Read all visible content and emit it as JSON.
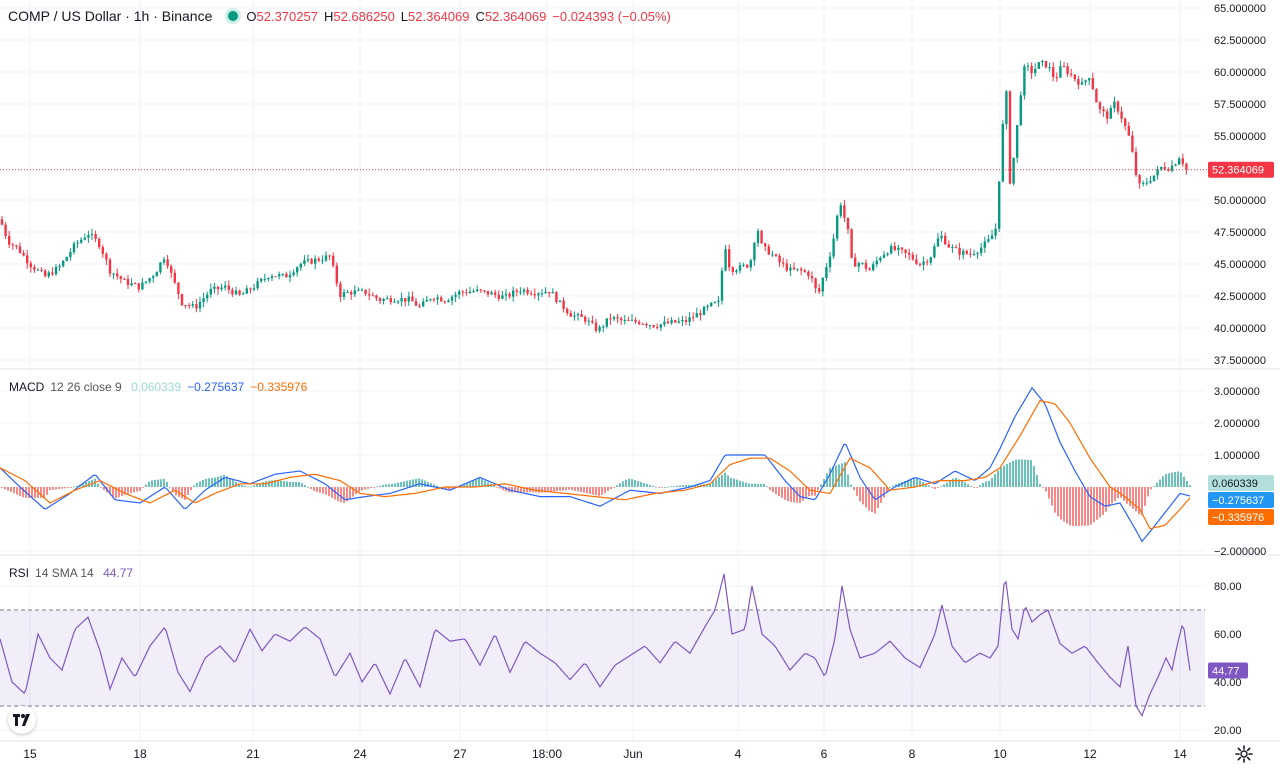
{
  "header": {
    "symbol_line": "COMP / US Dollar · 1h · Binance",
    "open_label": "O",
    "open": "52.370257",
    "high_label": "H",
    "high": "52.686250",
    "low_label": "L",
    "low": "52.364069",
    "close_label": "C",
    "close": "52.364069",
    "change": "−0.024393 (−0.05%)"
  },
  "macd_legend": {
    "name": "MACD",
    "params": "12 26 close 9",
    "hist": "0.060339",
    "macd": "−0.275637",
    "signal": "−0.335976"
  },
  "rsi_legend": {
    "name": "RSI",
    "params": "14 SMA 14",
    "value": "44.77"
  },
  "colors": {
    "up": "#089981",
    "down": "#f23645",
    "macd": "#2962ff",
    "signal": "#ff6d00",
    "rsi": "#7e57c2",
    "hist_up": "#26a69a",
    "hist_down": "#ef5350"
  },
  "chart_data": [
    {
      "type": "candlestick",
      "title": "COMP / US Dollar · 1h · Binance",
      "ylim": [
        36.5,
        65.0
      ],
      "y_ticks": [
        "65.000000",
        "62.500000",
        "60.000000",
        "57.500000",
        "55.000000",
        "50.000000",
        "47.500000",
        "45.000000",
        "42.500000",
        "40.000000",
        "37.500000"
      ],
      "last_price": "52.364069",
      "x_tick_labels": [
        "15",
        "18",
        "21",
        "24",
        "27",
        "18:00",
        "Jun",
        "4",
        "6",
        "8",
        "10",
        "12",
        "14"
      ],
      "close_path": [
        [
          0,
          48.5
        ],
        [
          8,
          46.8
        ],
        [
          18,
          46.2
        ],
        [
          30,
          45.0
        ],
        [
          45,
          44.0
        ],
        [
          60,
          44.8
        ],
        [
          75,
          46.5
        ],
        [
          88,
          47.4
        ],
        [
          100,
          46.5
        ],
        [
          110,
          44.5
        ],
        [
          125,
          43.6
        ],
        [
          140,
          43.2
        ],
        [
          155,
          44.3
        ],
        [
          165,
          45.7
        ],
        [
          172,
          44.0
        ],
        [
          182,
          42.0
        ],
        [
          195,
          41.6
        ],
        [
          210,
          42.9
        ],
        [
          225,
          43.2
        ],
        [
          240,
          42.5
        ],
        [
          255,
          43.3
        ],
        [
          270,
          44.2
        ],
        [
          285,
          44.0
        ],
        [
          300,
          45.0
        ],
        [
          315,
          45.3
        ],
        [
          330,
          45.6
        ],
        [
          340,
          42.6
        ],
        [
          350,
          42.8
        ],
        [
          365,
          42.8
        ],
        [
          380,
          42.2
        ],
        [
          395,
          42.3
        ],
        [
          410,
          42.2
        ],
        [
          420,
          41.6
        ],
        [
          432,
          42.5
        ],
        [
          445,
          42.2
        ],
        [
          460,
          42.8
        ],
        [
          475,
          42.9
        ],
        [
          490,
          42.7
        ],
        [
          505,
          42.4
        ],
        [
          520,
          43.0
        ],
        [
          535,
          42.8
        ],
        [
          550,
          42.9
        ],
        [
          560,
          41.9
        ],
        [
          572,
          41.0
        ],
        [
          585,
          40.7
        ],
        [
          598,
          39.8
        ],
        [
          610,
          40.8
        ],
        [
          625,
          40.5
        ],
        [
          640,
          40.5
        ],
        [
          655,
          40.2
        ],
        [
          670,
          40.4
        ],
        [
          685,
          40.5
        ],
        [
          700,
          41.2
        ],
        [
          712,
          41.8
        ],
        [
          720,
          42.0
        ],
        [
          724,
          47.0
        ],
        [
          730,
          44.6
        ],
        [
          740,
          44.7
        ],
        [
          750,
          45.0
        ],
        [
          757,
          48.0
        ],
        [
          762,
          46.3
        ],
        [
          770,
          45.9
        ],
        [
          780,
          45.1
        ],
        [
          790,
          44.5
        ],
        [
          800,
          44.5
        ],
        [
          810,
          44.2
        ],
        [
          818,
          42.5
        ],
        [
          825,
          44.5
        ],
        [
          832,
          46.3
        ],
        [
          840,
          50.0
        ],
        [
          848,
          47.5
        ],
        [
          852,
          45.0
        ],
        [
          860,
          45.1
        ],
        [
          870,
          44.5
        ],
        [
          880,
          45.6
        ],
        [
          890,
          46.2
        ],
        [
          900,
          46.0
        ],
        [
          910,
          45.6
        ],
        [
          920,
          45.0
        ],
        [
          930,
          45.5
        ],
        [
          940,
          47.3
        ],
        [
          950,
          46.3
        ],
        [
          960,
          45.9
        ],
        [
          970,
          45.8
        ],
        [
          980,
          46.2
        ],
        [
          990,
          46.9
        ],
        [
          997,
          48.0
        ],
        [
          1000,
          53.0
        ],
        [
          1006,
          59.0
        ],
        [
          1010,
          51.5
        ],
        [
          1015,
          54.0
        ],
        [
          1020,
          58.0
        ],
        [
          1025,
          60.5
        ],
        [
          1032,
          60.0
        ],
        [
          1040,
          60.7
        ],
        [
          1048,
          60.5
        ],
        [
          1055,
          59.4
        ],
        [
          1062,
          60.5
        ],
        [
          1068,
          60.0
        ],
        [
          1075,
          59.5
        ],
        [
          1082,
          59.0
        ],
        [
          1090,
          59.8
        ],
        [
          1095,
          58.0
        ],
        [
          1100,
          57.0
        ],
        [
          1108,
          56.5
        ],
        [
          1115,
          57.6
        ],
        [
          1122,
          56.4
        ],
        [
          1130,
          54.7
        ],
        [
          1136,
          52.0
        ],
        [
          1140,
          51.0
        ],
        [
          1148,
          51.5
        ],
        [
          1155,
          52.0
        ],
        [
          1162,
          52.6
        ],
        [
          1170,
          52.5
        ],
        [
          1176,
          53.0
        ],
        [
          1180,
          53.5
        ],
        [
          1186,
          52.4
        ],
        [
          1190,
          52.36
        ]
      ]
    },
    {
      "type": "line",
      "title": "MACD 12 26 close 9",
      "ylim": [
        -2.4,
        3.5
      ],
      "y_ticks": [
        "3.000000",
        "2.000000",
        "1.000000",
        "−2.000000"
      ],
      "series": [
        {
          "name": "MACD",
          "x": [
            0,
            20,
            45,
            70,
            95,
            115,
            140,
            165,
            185,
            205,
            225,
            250,
            275,
            300,
            325,
            345,
            365,
            390,
            420,
            450,
            480,
            510,
            540,
            570,
            600,
            630,
            660,
            690,
            710,
            725,
            745,
            765,
            785,
            800,
            815,
            830,
            845,
            860,
            875,
            895,
            915,
            935,
            955,
            975,
            990,
            1000,
            1015,
            1032,
            1045,
            1060,
            1075,
            1090,
            1105,
            1120,
            1135,
            1142,
            1150,
            1165,
            1180,
            1190
          ],
          "values": [
            0.6,
            0.0,
            -0.7,
            -0.2,
            0.4,
            -0.4,
            -0.5,
            0.0,
            -0.7,
            -0.1,
            0.3,
            0.1,
            0.4,
            0.5,
            0.1,
            -0.4,
            -0.3,
            -0.2,
            0.1,
            -0.1,
            0.3,
            -0.1,
            -0.3,
            -0.3,
            -0.6,
            -0.1,
            -0.2,
            0.0,
            0.2,
            1.0,
            1.0,
            1.0,
            0.2,
            -0.3,
            -0.4,
            0.4,
            1.4,
            0.3,
            -0.4,
            0.0,
            0.3,
            0.1,
            0.5,
            0.2,
            0.6,
            1.2,
            2.2,
            3.1,
            2.6,
            1.4,
            0.5,
            -0.3,
            -0.6,
            -0.5,
            -1.3,
            -1.7,
            -1.4,
            -0.8,
            -0.2,
            -0.28
          ]
        },
        {
          "name": "Signal",
          "x": [
            0,
            25,
            50,
            75,
            100,
            125,
            150,
            175,
            195,
            215,
            240,
            265,
            290,
            315,
            340,
            360,
            385,
            415,
            445,
            475,
            505,
            535,
            565,
            595,
            625,
            655,
            685,
            710,
            730,
            750,
            770,
            790,
            810,
            830,
            850,
            870,
            890,
            915,
            940,
            965,
            985,
            1000,
            1020,
            1040,
            1055,
            1070,
            1090,
            1110,
            1125,
            1140,
            1150,
            1165,
            1180,
            1190
          ],
          "values": [
            0.6,
            0.2,
            -0.5,
            -0.1,
            0.2,
            -0.2,
            -0.5,
            -0.1,
            -0.5,
            -0.2,
            0.1,
            0.1,
            0.3,
            0.4,
            0.2,
            -0.2,
            -0.3,
            -0.2,
            0.0,
            0.0,
            0.1,
            -0.1,
            -0.2,
            -0.3,
            -0.4,
            -0.2,
            -0.1,
            0.1,
            0.7,
            0.9,
            0.9,
            0.5,
            -0.1,
            -0.2,
            0.9,
            0.6,
            -0.1,
            0.0,
            0.2,
            0.2,
            0.3,
            0.6,
            1.6,
            2.7,
            2.6,
            2.0,
            0.9,
            0.0,
            -0.3,
            -0.7,
            -1.3,
            -1.2,
            -0.7,
            -0.34
          ]
        }
      ]
    },
    {
      "type": "line",
      "title": "RSI 14 SMA 14",
      "ylim": [
        15,
        90
      ],
      "y_ticks": [
        "80.00",
        "60.00",
        "40.00",
        "20.00"
      ],
      "band": [
        30,
        70
      ],
      "series": [
        {
          "name": "RSI",
          "x": [
            0,
            12,
            25,
            38,
            50,
            62,
            75,
            88,
            100,
            110,
            122,
            135,
            150,
            165,
            178,
            190,
            205,
            220,
            235,
            250,
            262,
            275,
            290,
            305,
            320,
            335,
            350,
            362,
            375,
            390,
            405,
            420,
            435,
            450,
            465,
            480,
            495,
            510,
            525,
            540,
            555,
            570,
            585,
            600,
            615,
            630,
            645,
            660,
            675,
            690,
            705,
            715,
            724,
            732,
            745,
            752,
            762,
            775,
            790,
            805,
            815,
            825,
            835,
            842,
            850,
            860,
            875,
            890,
            905,
            920,
            935,
            942,
            952,
            965,
            980,
            990,
            998,
            1005,
            1012,
            1018,
            1025,
            1032,
            1040,
            1048,
            1060,
            1072,
            1085,
            1098,
            1110,
            1120,
            1128,
            1136,
            1142,
            1150,
            1158,
            1166,
            1172,
            1177,
            1183,
            1190
          ],
          "values": [
            58,
            40,
            35,
            60,
            50,
            45,
            62,
            67,
            53,
            37,
            50,
            42,
            55,
            63,
            44,
            36,
            50,
            55,
            48,
            62,
            53,
            60,
            57,
            63,
            58,
            42,
            52,
            40,
            48,
            35,
            50,
            38,
            62,
            57,
            58,
            47,
            60,
            44,
            57,
            52,
            48,
            41,
            48,
            38,
            47,
            51,
            55,
            48,
            57,
            52,
            63,
            70,
            85,
            60,
            62,
            80,
            60,
            55,
            45,
            52,
            50,
            42,
            58,
            80,
            62,
            50,
            52,
            57,
            50,
            46,
            60,
            72,
            55,
            48,
            52,
            50,
            55,
            85,
            62,
            58,
            72,
            65,
            68,
            70,
            56,
            52,
            55,
            48,
            42,
            38,
            55,
            30,
            26,
            35,
            42,
            50,
            45,
            55,
            65,
            44.77
          ]
        }
      ]
    }
  ]
}
